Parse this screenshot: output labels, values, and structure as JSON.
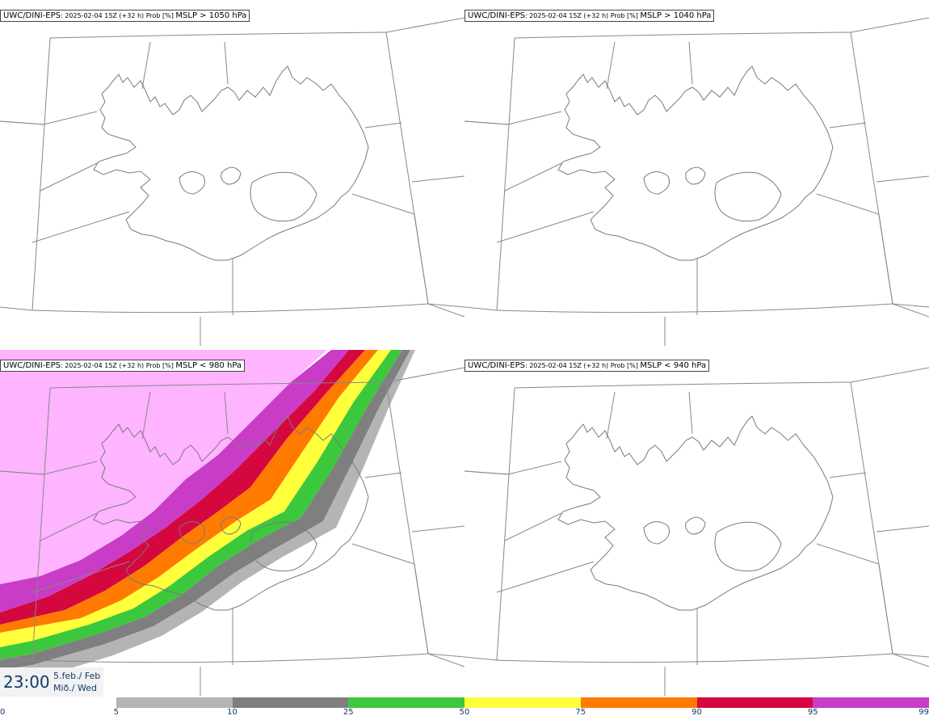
{
  "panels": [
    {
      "model": "UWC/DINI-EPS",
      "meta": ": 2025-02-04 15Z (+32 h) Prob [%] ",
      "measure": "MSLP > 1050 hPa",
      "filled": false
    },
    {
      "model": "UWC/DINI-EPS",
      "meta": ": 2025-02-04 15Z (+32 h) Prob [%] ",
      "measure": "MSLP > 1040 hPa",
      "filled": false
    },
    {
      "model": "UWC/DINI-EPS",
      "meta": ": 2025-02-04 15Z (+32 h) Prob [%] ",
      "measure": "MSLP < 980 hPa",
      "filled": true
    },
    {
      "model": "UWC/DINI-EPS",
      "meta": ": 2025-02-04 15Z (+32 h) Prob [%] ",
      "measure": "MSLP < 940 hPa",
      "filled": false
    }
  ],
  "time": {
    "clock": "23:00",
    "date_line1": "5.feb./ Feb",
    "date_line2": "Mið./ Wed"
  },
  "legend": {
    "ticks": [
      "0",
      "5",
      "10",
      "25",
      "50",
      "75",
      "90",
      "95",
      "99"
    ],
    "colors": [
      "#ffffff",
      "#b4b4b4",
      "#7f7f7f",
      "#3cc83c",
      "#ffff3c",
      "#ff7a00",
      "#d4073f",
      "#c83cc8",
      "#ffb4ff"
    ]
  },
  "map_colors": {
    "coast": "#7a7a7a",
    "grid": "#888888",
    "border": "#333333"
  }
}
